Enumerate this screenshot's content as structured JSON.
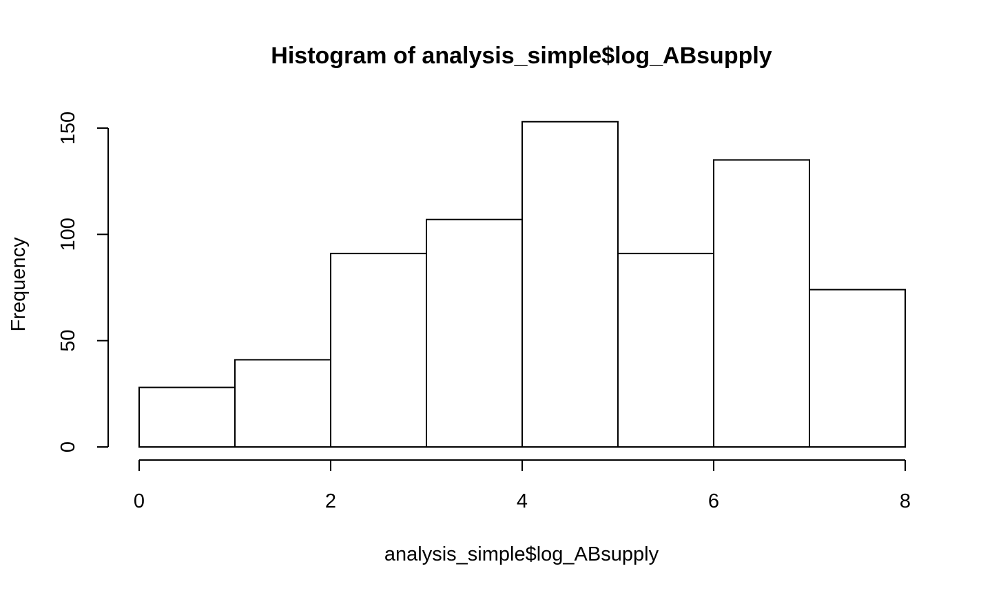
{
  "chart_data": {
    "type": "bar",
    "subtype": "histogram",
    "title": "Histogram of analysis_simple$log_ABsupply",
    "xlabel": "analysis_simple$log_ABsupply",
    "ylabel": "Frequency",
    "bins": [
      {
        "x0": 0,
        "x1": 1,
        "count": 28
      },
      {
        "x0": 1,
        "x1": 2,
        "count": 41
      },
      {
        "x0": 2,
        "x1": 3,
        "count": 91
      },
      {
        "x0": 3,
        "x1": 4,
        "count": 107
      },
      {
        "x0": 4,
        "x1": 5,
        "count": 153
      },
      {
        "x0": 5,
        "x1": 6,
        "count": 91
      },
      {
        "x0": 6,
        "x1": 7,
        "count": 135
      },
      {
        "x0": 7,
        "x1": 8,
        "count": 74
      }
    ],
    "xlim": [
      0,
      8
    ],
    "ylim": [
      0,
      150
    ],
    "xticks": [
      0,
      2,
      4,
      6,
      8
    ],
    "yticks": [
      0,
      50,
      100,
      150
    ],
    "grid": false,
    "colors": {
      "bar_fill": "#ffffff",
      "bar_stroke": "#000000"
    }
  }
}
